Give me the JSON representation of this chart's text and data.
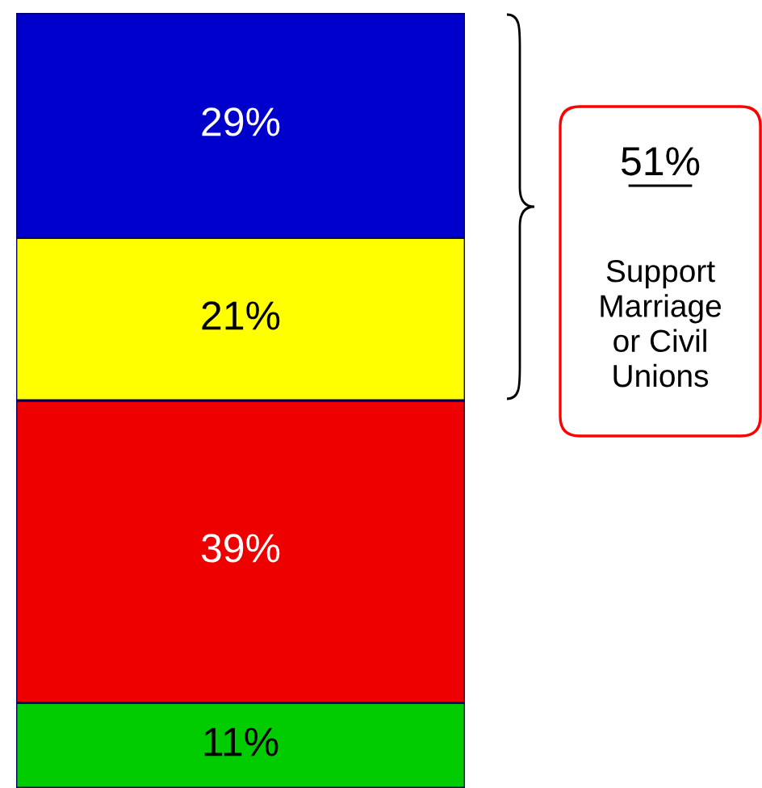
{
  "chart_data": {
    "type": "bar",
    "stacked": true,
    "categories": [
      null
    ],
    "ylim": [
      0,
      100
    ],
    "series": [
      {
        "color": "#00cc00",
        "values": [
          11
        ],
        "value_labels": [
          "11%"
        ]
      },
      {
        "color": "#ee0000",
        "values": [
          39
        ],
        "value_labels": [
          "39%"
        ]
      },
      {
        "color": "#ffff00",
        "values": [
          21
        ],
        "value_labels": [
          "21%"
        ]
      },
      {
        "color": "#0000cc",
        "values": [
          29
        ],
        "value_labels": [
          "29%"
        ]
      }
    ],
    "annotations": [
      "51%",
      "Support\nMarriage\nor Civil\nUnions"
    ]
  }
}
